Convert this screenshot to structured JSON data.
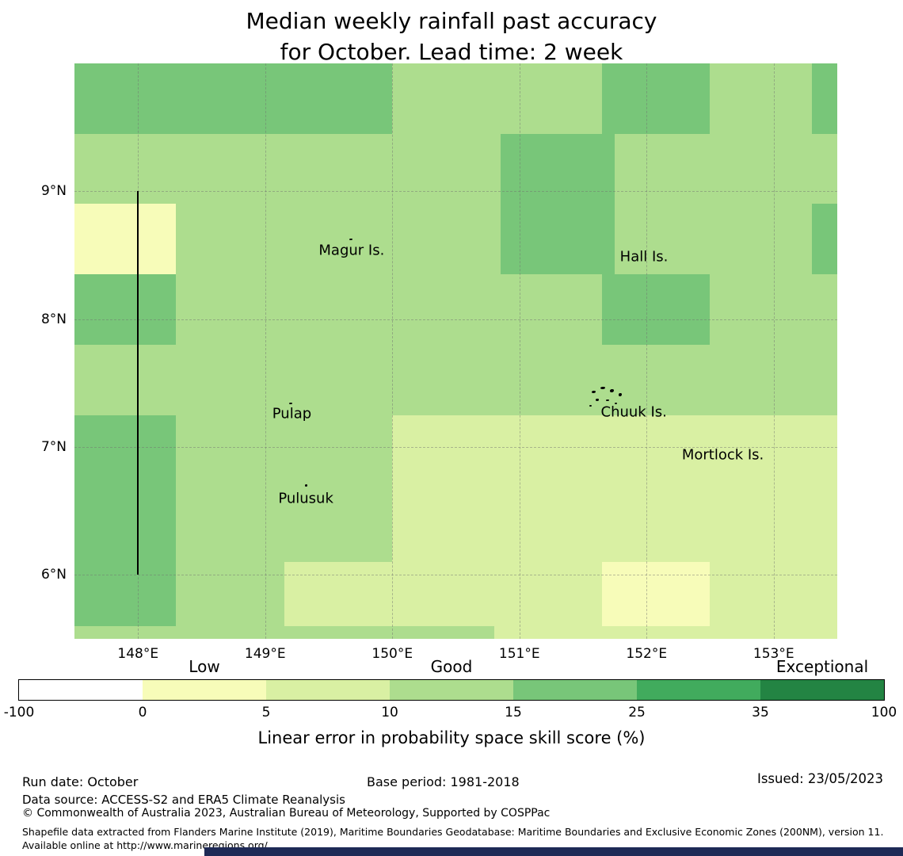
{
  "title": {
    "line1": "Median weekly rainfall past accuracy",
    "line2": "for October. Lead time: 2 week"
  },
  "chart_data": {
    "type": "heatmap",
    "title": "Median weekly rainfall past accuracy for October. Lead time: 2 week",
    "proj": {
      "lon_min": 147.5,
      "lon_max": 153.5,
      "lat_min": 5.5,
      "lat_max": 10
    },
    "x_ticks": [
      {
        "v": 148,
        "label": "148°E"
      },
      {
        "v": 149,
        "label": "149°E"
      },
      {
        "v": 150,
        "label": "150°E"
      },
      {
        "v": 151,
        "label": "151°E"
      },
      {
        "v": 152,
        "label": "152°E"
      },
      {
        "v": 153,
        "label": "153°E"
      }
    ],
    "y_ticks": [
      {
        "v": 6,
        "label": "6°N"
      },
      {
        "v": 7,
        "label": "7°N"
      },
      {
        "v": 8,
        "label": "8°N"
      },
      {
        "v": 9,
        "label": "9°N"
      }
    ],
    "bins": [
      {
        "range": "<0",
        "min": -100,
        "max": 0,
        "color": "#ffffff"
      },
      {
        "range": "0-5",
        "min": 0,
        "max": 5,
        "color": "#f7fcb9"
      },
      {
        "range": "5-10",
        "min": 5,
        "max": 10,
        "color": "#d9f0a3"
      },
      {
        "range": "10-15",
        "min": 10,
        "max": 15,
        "color": "#addd8e"
      },
      {
        "range": "15-25",
        "min": 15,
        "max": 25,
        "color": "#78c679"
      },
      {
        "range": "25-35",
        "min": 25,
        "max": 35,
        "color": "#41ab5d"
      },
      {
        "range": "35-100",
        "min": 35,
        "max": 100,
        "color": "#238443"
      }
    ],
    "base_bin": "10-15",
    "cells": [
      {
        "lon0": 147.5,
        "lon1": 150.0,
        "latN": 10.0,
        "latS": 9.45,
        "bin": "15-25"
      },
      {
        "lon0": 151.65,
        "lon1": 152.5,
        "latN": 10.0,
        "latS": 9.45,
        "bin": "15-25"
      },
      {
        "lon0": 153.3,
        "lon1": 153.5,
        "latN": 10.0,
        "latS": 9.45,
        "bin": "15-25"
      },
      {
        "lon0": 150.85,
        "lon1": 151.75,
        "latN": 9.45,
        "latS": 8.35,
        "bin": "15-25"
      },
      {
        "lon0": 147.5,
        "lon1": 148.3,
        "latN": 8.9,
        "latS": 8.35,
        "bin": "0-5"
      },
      {
        "lon0": 147.5,
        "lon1": 148.3,
        "latN": 8.35,
        "latS": 7.8,
        "bin": "15-25"
      },
      {
        "lon0": 151.65,
        "lon1": 152.5,
        "latN": 8.35,
        "latS": 7.8,
        "bin": "15-25"
      },
      {
        "lon0": 153.3,
        "lon1": 153.5,
        "latN": 8.9,
        "latS": 8.35,
        "bin": "15-25"
      },
      {
        "lon0": 150.0,
        "lon1": 153.5,
        "latN": 7.25,
        "latS": 5.5,
        "bin": "5-10"
      },
      {
        "lon0": 147.5,
        "lon1": 148.3,
        "latN": 7.25,
        "latS": 5.6,
        "bin": "15-25"
      },
      {
        "lon0": 149.15,
        "lon1": 150.0,
        "latN": 6.1,
        "latS": 5.6,
        "bin": "5-10"
      },
      {
        "lon0": 151.65,
        "lon1": 152.5,
        "latN": 6.1,
        "latS": 5.6,
        "bin": "0-5"
      },
      {
        "lon0": 147.5,
        "lon1": 150.8,
        "latN": 5.6,
        "latS": 5.5,
        "bin": "10-15"
      }
    ],
    "boundary_line": {
      "lon": 148,
      "lat_from": 6,
      "lat_to": 9
    },
    "islands": {
      "labels": [
        {
          "text": "Magur Is.",
          "lon": 149.68,
          "lat": 8.54
        },
        {
          "text": "Hall Is.",
          "lon": 151.98,
          "lat": 8.49
        },
        {
          "text": "Pulap",
          "lon": 149.21,
          "lat": 7.26
        },
        {
          "text": "Chuuk Is.",
          "lon": 151.9,
          "lat": 7.27
        },
        {
          "text": "Mortlock Is.",
          "lon": 152.6,
          "lat": 6.94
        },
        {
          "text": "Pulusuk",
          "lon": 149.32,
          "lat": 6.6
        }
      ],
      "dots": [
        {
          "lon": 149.66,
          "lat": 8.63,
          "w": 4,
          "h": 2
        },
        {
          "lon": 149.19,
          "lat": 7.35,
          "w": 4,
          "h": 2
        },
        {
          "lon": 149.31,
          "lat": 6.71,
          "w": 3,
          "h": 3
        },
        {
          "lon": 151.57,
          "lat": 7.44,
          "w": 5,
          "h": 3
        },
        {
          "lon": 151.64,
          "lat": 7.47,
          "w": 6,
          "h": 3
        },
        {
          "lon": 151.71,
          "lat": 7.45,
          "w": 5,
          "h": 4
        },
        {
          "lon": 151.78,
          "lat": 7.42,
          "w": 4,
          "h": 4
        },
        {
          "lon": 151.6,
          "lat": 7.38,
          "w": 4,
          "h": 3
        },
        {
          "lon": 151.68,
          "lat": 7.37,
          "w": 4,
          "h": 2
        },
        {
          "lon": 151.75,
          "lat": 7.35,
          "w": 3,
          "h": 2
        },
        {
          "lon": 151.55,
          "lat": 7.33,
          "w": 3,
          "h": 2
        }
      ]
    },
    "colorbar": {
      "ticks": [
        {
          "label": "-100",
          "pos": 0
        },
        {
          "label": "0",
          "pos": 14.29
        },
        {
          "label": "5",
          "pos": 28.57
        },
        {
          "label": "10",
          "pos": 42.86
        },
        {
          "label": "15",
          "pos": 57.14
        },
        {
          "label": "25",
          "pos": 71.43
        },
        {
          "label": "35",
          "pos": 85.71
        },
        {
          "label": "100",
          "pos": 100
        }
      ],
      "categories": [
        {
          "label": "Low",
          "pos": 21.43
        },
        {
          "label": "Good",
          "pos": 50
        },
        {
          "label": "Exceptional",
          "pos": 92.86
        }
      ],
      "axis_label": "Linear error in probability space skill score (%)"
    }
  },
  "footer": {
    "run_date": "Run date: October",
    "base_period": "Base period: 1981-2018",
    "issued": "Issued: 23/05/2023",
    "data_source": "Data source: ACCESS-S2 and ERA5 Climate Reanalysis",
    "copyright": "© Commonwealth of Australia 2023, Australian Bureau of Meteorology, Supported by COSPPac",
    "shapefile": "Shapefile data extracted from Flanders Marine Institute (2019), Maritime Boundaries Geodatabase: Maritime Boundaries and Exclusive Economic Zones (200NM), version 11. Available online at http://www.marineregions.org/."
  }
}
